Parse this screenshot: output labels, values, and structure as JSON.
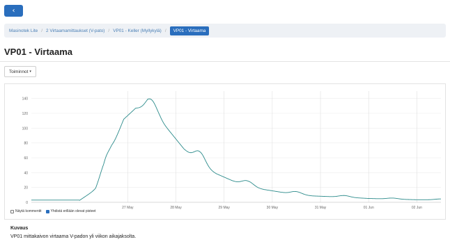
{
  "nav": {
    "back_icon": "chevron-left-icon",
    "back_glyph": "‹"
  },
  "breadcrumb": {
    "items": [
      "Masinotek Lite",
      "2 Virtaamamittaukset (V-pato)",
      "VP01 - Keller (Myllykylä)"
    ],
    "active": "VP01 - Virtaama",
    "separator": "/"
  },
  "page": {
    "title": "VP01 - Virtaama",
    "actions_label": "Toiminnot",
    "actions_caret": "▾"
  },
  "chart_data": {
    "type": "line",
    "title": "",
    "xlabel": "",
    "ylabel": "",
    "ylim": [
      0,
      150
    ],
    "yticks": [
      0,
      20,
      40,
      60,
      80,
      100,
      120,
      140
    ],
    "xlim": [
      "2023-05-25T00:00",
      "2023-06-02T12:00"
    ],
    "xticks": [
      "2023-05-27",
      "2023-05-28",
      "2023-05-29",
      "2023-05-30",
      "2023-05-31",
      "2023-06-01",
      "2023-06-02"
    ],
    "xtick_labels": [
      "27 May",
      "28 May",
      "29 May",
      "30 May",
      "31 May",
      "01 Jun",
      "02 Jun"
    ],
    "grid": true,
    "series": [
      {
        "color": "#2a8a8a",
        "x": [
          "2023-05-25T00:00",
          "2023-05-26T00:00",
          "2023-05-26T08:00",
          "2023-05-26T12:00",
          "2023-05-26T16:00",
          "2023-05-26T22:00",
          "2023-05-27T04:00",
          "2023-05-27T10:00",
          "2023-05-27T16:00",
          "2023-05-27T22:00",
          "2023-05-28T04:00",
          "2023-05-28T12:00",
          "2023-05-28T20:00",
          "2023-05-29T04:00",
          "2023-05-29T12:00",
          "2023-05-29T20:00",
          "2023-05-30T08:00",
          "2023-05-30T20:00",
          "2023-05-31T12:00",
          "2023-06-01T00:00",
          "2023-06-01T12:00",
          "2023-06-02T00:00",
          "2023-06-02T12:00"
        ],
        "y": [
          3,
          3,
          20,
          45,
          80,
          120,
          135,
          135,
          120,
          100,
          80,
          60,
          45,
          34,
          25,
          20,
          14,
          10,
          8,
          6,
          5,
          4,
          4
        ],
        "daily_fluctuation": true
      }
    ]
  },
  "options": {
    "show_comments": {
      "label": "Näytä kommentit",
      "checked": false
    },
    "show_prev_points": {
      "label": "Yhdistä erillään olevat pisteet",
      "checked": true
    }
  },
  "description": {
    "heading": "Kuvaus",
    "text": "VP01 mittakaivon virtaama V-padon yli viikon aikajaksolta."
  }
}
